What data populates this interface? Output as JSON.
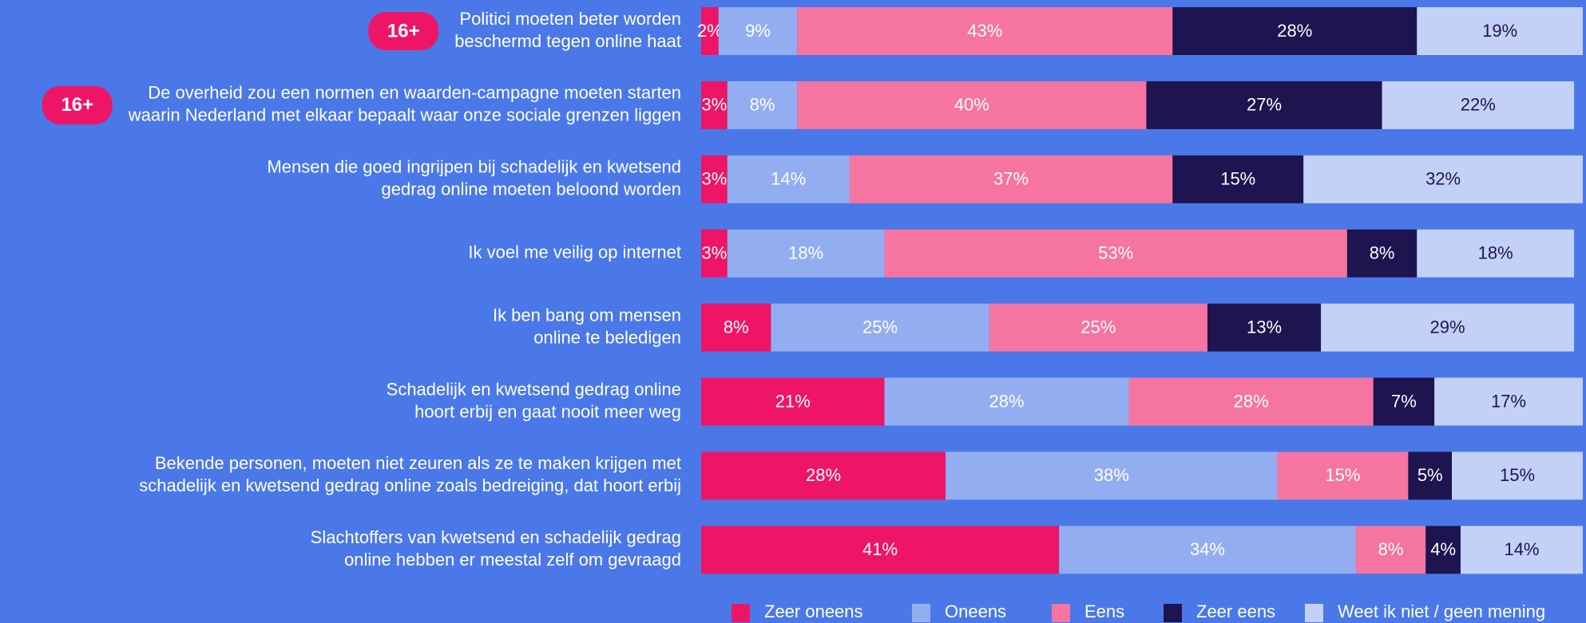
{
  "chart_data": {
    "type": "stacked_bar_horizontal",
    "categories": [
      [
        "Politici moeten beter worden",
        "beschermd tegen online haat"
      ],
      [
        "De overheid zou een normen en waarden-campagne moeten starten",
        "waarin Nederland met elkaar bepaalt waar onze sociale grenzen liggen"
      ],
      [
        "Mensen die goed ingrijpen bij schadelijk en kwetsend",
        "gedrag online moeten beloond worden"
      ],
      [
        "Ik voel me veilig op internet"
      ],
      [
        "Ik ben bang om mensen",
        "online te beledigen"
      ],
      [
        "Schadelijk en kwetsend gedrag online",
        "hoort erbij en gaat nooit meer weg"
      ],
      [
        "Bekende personen, moeten niet zeuren als ze te maken krijgen met",
        "schadelijk en kwetsend gedrag online zoals bedreiging, dat hoort erbij"
      ],
      [
        "Slachtoffers van kwetsend en schadelijk gedrag",
        "online hebben er meestal zelf om gevraagd"
      ]
    ],
    "badges": [
      "16+",
      "16+",
      null,
      null,
      null,
      null,
      null,
      null
    ],
    "series": [
      {
        "name": "Zeer oneens",
        "color": "#ee1566",
        "values": [
          2,
          3,
          3,
          3,
          8,
          21,
          28,
          41
        ],
        "value_labels": [
          "2%",
          "3%",
          "3%",
          "3%",
          "8%",
          "21%",
          "28%",
          "41%"
        ]
      },
      {
        "name": "Oneens",
        "color": "#93aef0",
        "values": [
          9,
          8,
          14,
          18,
          25,
          28,
          38,
          34
        ],
        "value_labels": [
          "9%",
          "8%",
          "14%",
          "18%",
          "25%",
          "28%",
          "38%",
          "34%"
        ]
      },
      {
        "name": "Eens",
        "color": "#f574a0",
        "values": [
          43,
          40,
          37,
          53,
          25,
          28,
          15,
          8
        ],
        "value_labels": [
          "43%",
          "40%",
          "37%",
          "53%",
          "25%",
          "28%",
          "15%",
          "8%"
        ]
      },
      {
        "name": "Zeer eens",
        "color": "#1e1450",
        "values": [
          28,
          27,
          15,
          8,
          13,
          7,
          5,
          4
        ],
        "value_labels": [
          "28%",
          "27%",
          "15%",
          "8%",
          "13%",
          "7%",
          "5%",
          "4%"
        ]
      },
      {
        "name": "Weet ik niet / geen mening",
        "color": "#c3d1f7",
        "values": [
          19,
          22,
          32,
          18,
          29,
          17,
          15,
          14
        ],
        "value_labels": [
          "19%",
          "22%",
          "32%",
          "18%",
          "29%",
          "17%",
          "15%",
          "14%"
        ]
      }
    ],
    "legend": "bottom"
  }
}
